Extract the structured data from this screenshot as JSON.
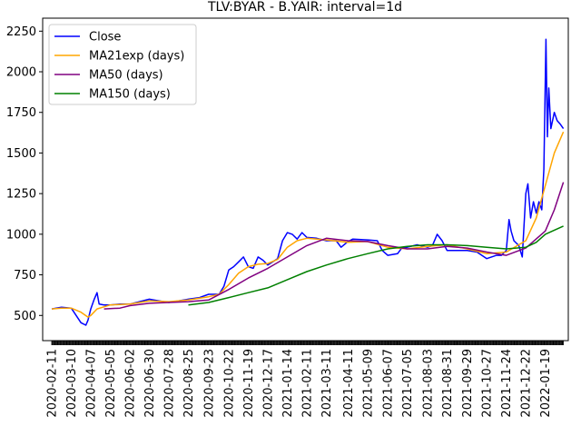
{
  "chart_data": {
    "type": "line",
    "title": "TLV:BYAR - B.YAIR: interval=1d",
    "xlabel": "",
    "ylabel": "",
    "xlim": [
      "2020-01-29",
      "2022-02-21"
    ],
    "ylim": [
      345,
      2330
    ],
    "grid": false,
    "legend_position": "top-left",
    "y_ticks": [
      500,
      750,
      1000,
      1250,
      1500,
      1750,
      2000,
      2250
    ],
    "x_ticks": [
      "2020-02-11",
      "2020-03-10",
      "2020-04-07",
      "2020-05-05",
      "2020-06-02",
      "2020-06-30",
      "2020-07-28",
      "2020-08-25",
      "2020-09-23",
      "2020-10-22",
      "2020-11-19",
      "2020-12-17",
      "2021-01-14",
      "2021-02-11",
      "2021-03-11",
      "2021-04-11",
      "2021-05-09",
      "2021-06-07",
      "2021-07-05",
      "2021-08-03",
      "2021-08-31",
      "2021-09-29",
      "2021-10-27",
      "2021-11-24",
      "2021-12-22",
      "2022-01-19"
    ],
    "series": [
      {
        "name": "Close",
        "color": "#0000ff",
        "points": [
          [
            "2020-02-11",
            540
          ],
          [
            "2020-02-25",
            550
          ],
          [
            "2020-03-10",
            545
          ],
          [
            "2020-03-17",
            500
          ],
          [
            "2020-03-24",
            455
          ],
          [
            "2020-03-31",
            440
          ],
          [
            "2020-04-03",
            470
          ],
          [
            "2020-04-07",
            540
          ],
          [
            "2020-04-12",
            600
          ],
          [
            "2020-04-16",
            640
          ],
          [
            "2020-04-19",
            570
          ],
          [
            "2020-04-26",
            565
          ],
          [
            "2020-05-05",
            565
          ],
          [
            "2020-05-19",
            570
          ],
          [
            "2020-06-02",
            570
          ],
          [
            "2020-06-16",
            585
          ],
          [
            "2020-06-30",
            600
          ],
          [
            "2020-07-14",
            590
          ],
          [
            "2020-07-28",
            580
          ],
          [
            "2020-08-11",
            590
          ],
          [
            "2020-08-25",
            600
          ],
          [
            "2020-09-10",
            610
          ],
          [
            "2020-09-23",
            630
          ],
          [
            "2020-10-08",
            630
          ],
          [
            "2020-10-15",
            680
          ],
          [
            "2020-10-22",
            780
          ],
          [
            "2020-10-29",
            800
          ],
          [
            "2020-11-05",
            830
          ],
          [
            "2020-11-12",
            860
          ],
          [
            "2020-11-19",
            800
          ],
          [
            "2020-11-26",
            790
          ],
          [
            "2020-12-03",
            860
          ],
          [
            "2020-12-10",
            840
          ],
          [
            "2020-12-17",
            810
          ],
          [
            "2020-12-31",
            850
          ],
          [
            "2021-01-07",
            960
          ],
          [
            "2021-01-14",
            1010
          ],
          [
            "2021-01-21",
            1000
          ],
          [
            "2021-01-28",
            970
          ],
          [
            "2021-02-04",
            1010
          ],
          [
            "2021-02-11",
            980
          ],
          [
            "2021-02-25",
            975
          ],
          [
            "2021-03-11",
            960
          ],
          [
            "2021-03-25",
            960
          ],
          [
            "2021-04-01",
            920
          ],
          [
            "2021-04-11",
            955
          ],
          [
            "2021-04-18",
            970
          ],
          [
            "2021-05-09",
            965
          ],
          [
            "2021-05-23",
            960
          ],
          [
            "2021-05-30",
            900
          ],
          [
            "2021-06-07",
            870
          ],
          [
            "2021-06-21",
            880
          ],
          [
            "2021-06-28",
            920
          ],
          [
            "2021-07-05",
            920
          ],
          [
            "2021-07-19",
            935
          ],
          [
            "2021-08-03",
            920
          ],
          [
            "2021-08-10",
            930
          ],
          [
            "2021-08-17",
            1000
          ],
          [
            "2021-08-24",
            960
          ],
          [
            "2021-08-31",
            900
          ],
          [
            "2021-09-14",
            900
          ],
          [
            "2021-09-29",
            900
          ],
          [
            "2021-10-13",
            890
          ],
          [
            "2021-10-27",
            850
          ],
          [
            "2021-11-10",
            870
          ],
          [
            "2021-11-17",
            870
          ],
          [
            "2021-11-24",
            900
          ],
          [
            "2021-11-28",
            1090
          ],
          [
            "2021-12-01",
            1020
          ],
          [
            "2021-12-05",
            960
          ],
          [
            "2021-12-12",
            930
          ],
          [
            "2021-12-17",
            860
          ],
          [
            "2021-12-22",
            1250
          ],
          [
            "2021-12-25",
            1310
          ],
          [
            "2021-12-29",
            1100
          ],
          [
            "2022-01-02",
            1200
          ],
          [
            "2022-01-06",
            1130
          ],
          [
            "2022-01-10",
            1200
          ],
          [
            "2022-01-14",
            1150
          ],
          [
            "2022-01-17",
            1400
          ],
          [
            "2022-01-20",
            2200
          ],
          [
            "2022-01-22",
            1600
          ],
          [
            "2022-01-24",
            1900
          ],
          [
            "2022-01-27",
            1650
          ],
          [
            "2022-02-01",
            1750
          ],
          [
            "2022-02-05",
            1700
          ],
          [
            "2022-02-09",
            1680
          ],
          [
            "2022-02-14",
            1650
          ]
        ]
      },
      {
        "name": "MA21exp (days)",
        "color": "#ffa500",
        "points": [
          [
            "2020-02-11",
            540
          ],
          [
            "2020-02-25",
            545
          ],
          [
            "2020-03-10",
            545
          ],
          [
            "2020-03-24",
            520
          ],
          [
            "2020-04-03",
            490
          ],
          [
            "2020-04-07",
            500
          ],
          [
            "2020-04-16",
            540
          ],
          [
            "2020-05-05",
            565
          ],
          [
            "2020-06-02",
            570
          ],
          [
            "2020-06-30",
            590
          ],
          [
            "2020-07-28",
            585
          ],
          [
            "2020-08-25",
            595
          ],
          [
            "2020-09-23",
            615
          ],
          [
            "2020-10-08",
            630
          ],
          [
            "2020-10-22",
            690
          ],
          [
            "2020-11-05",
            760
          ],
          [
            "2020-11-19",
            800
          ],
          [
            "2020-12-03",
            815
          ],
          [
            "2020-12-17",
            820
          ],
          [
            "2020-12-31",
            845
          ],
          [
            "2021-01-14",
            920
          ],
          [
            "2021-01-28",
            960
          ],
          [
            "2021-02-11",
            975
          ],
          [
            "2021-03-11",
            965
          ],
          [
            "2021-04-11",
            950
          ],
          [
            "2021-05-09",
            955
          ],
          [
            "2021-06-07",
            920
          ],
          [
            "2021-07-05",
            910
          ],
          [
            "2021-08-03",
            925
          ],
          [
            "2021-08-31",
            935
          ],
          [
            "2021-09-29",
            910
          ],
          [
            "2021-10-27",
            880
          ],
          [
            "2021-11-24",
            890
          ],
          [
            "2021-12-10",
            930
          ],
          [
            "2021-12-22",
            960
          ],
          [
            "2022-01-06",
            1100
          ],
          [
            "2022-01-19",
            1300
          ],
          [
            "2022-02-01",
            1500
          ],
          [
            "2022-02-14",
            1630
          ]
        ]
      },
      {
        "name": "MA50 (days)",
        "color": "#800080",
        "points": [
          [
            "2020-04-26",
            540
          ],
          [
            "2020-05-19",
            545
          ],
          [
            "2020-06-02",
            560
          ],
          [
            "2020-06-30",
            575
          ],
          [
            "2020-07-28",
            580
          ],
          [
            "2020-08-25",
            585
          ],
          [
            "2020-09-23",
            595
          ],
          [
            "2020-10-22",
            660
          ],
          [
            "2020-11-19",
            730
          ],
          [
            "2020-12-17",
            790
          ],
          [
            "2021-01-14",
            860
          ],
          [
            "2021-02-11",
            930
          ],
          [
            "2021-03-11",
            975
          ],
          [
            "2021-04-11",
            960
          ],
          [
            "2021-05-09",
            955
          ],
          [
            "2021-06-07",
            930
          ],
          [
            "2021-07-05",
            910
          ],
          [
            "2021-08-03",
            910
          ],
          [
            "2021-08-31",
            925
          ],
          [
            "2021-09-29",
            915
          ],
          [
            "2021-10-27",
            890
          ],
          [
            "2021-11-24",
            870
          ],
          [
            "2021-12-22",
            915
          ],
          [
            "2022-01-19",
            1020
          ],
          [
            "2022-02-01",
            1150
          ],
          [
            "2022-02-14",
            1320
          ]
        ]
      },
      {
        "name": "MA150 (days)",
        "color": "#008000",
        "points": [
          [
            "2020-08-25",
            565
          ],
          [
            "2020-09-23",
            580
          ],
          [
            "2020-10-22",
            610
          ],
          [
            "2020-11-19",
            640
          ],
          [
            "2020-12-17",
            670
          ],
          [
            "2021-01-14",
            720
          ],
          [
            "2021-02-11",
            770
          ],
          [
            "2021-03-11",
            810
          ],
          [
            "2021-04-11",
            850
          ],
          [
            "2021-05-09",
            880
          ],
          [
            "2021-06-07",
            910
          ],
          [
            "2021-07-05",
            925
          ],
          [
            "2021-08-03",
            935
          ],
          [
            "2021-08-31",
            935
          ],
          [
            "2021-09-29",
            930
          ],
          [
            "2021-10-27",
            920
          ],
          [
            "2021-11-24",
            910
          ],
          [
            "2021-12-22",
            920
          ],
          [
            "2022-01-06",
            950
          ],
          [
            "2022-01-19",
            1000
          ],
          [
            "2022-02-14",
            1050
          ]
        ]
      }
    ]
  }
}
